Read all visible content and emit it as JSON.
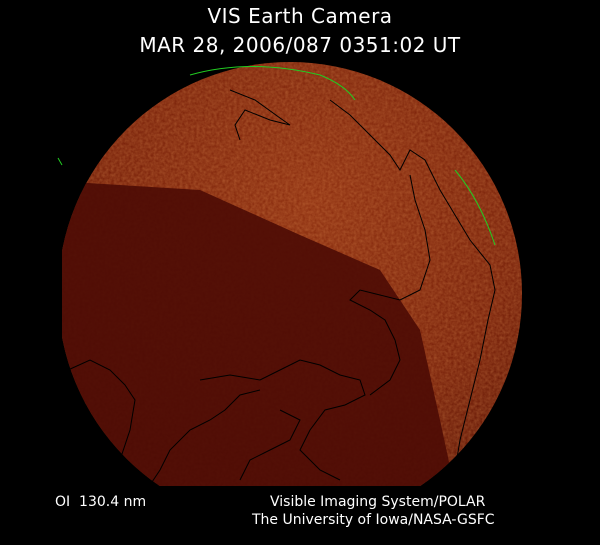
{
  "header": {
    "title": "VIS Earth Camera",
    "timestamp": "MAR 28, 2006/087 0351:02 UT"
  },
  "footer": {
    "wavelength": "OI  130.4 nm",
    "credit_line1": "Visible Imaging System/POLAR",
    "credit_line2": "The University of Iowa/NASA-GSFC"
  },
  "colors": {
    "background": "#000000",
    "earth_bright": "#8a2a0c",
    "earth_dark": "#4a0a04",
    "coastline": "#000000",
    "terminator_arc": "#22cc22",
    "text": "#ffffff"
  }
}
